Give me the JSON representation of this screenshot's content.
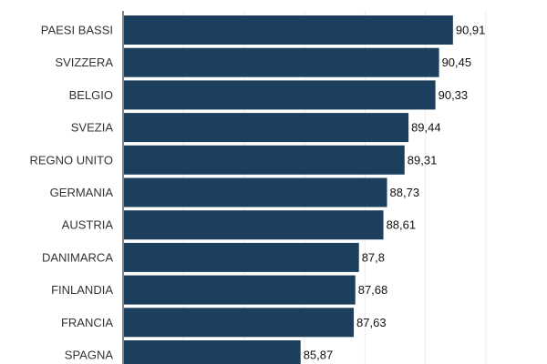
{
  "chart_data": {
    "type": "bar",
    "orientation": "horizontal",
    "categories": [
      "PAESI BASSI",
      "SVIZZERA",
      "BELGIO",
      "SVEZIA",
      "REGNO UNITO",
      "GERMANIA",
      "AUSTRIA",
      "DANIMARCA",
      "FINLANDIA",
      "FRANCIA",
      "SPAGNA"
    ],
    "values": [
      90.91,
      90.45,
      90.33,
      89.44,
      89.31,
      88.73,
      88.61,
      87.8,
      87.68,
      87.63,
      85.87
    ],
    "value_labels": [
      "90,91",
      "90,45",
      "90,33",
      "89,44",
      "89,31",
      "88,73",
      "88,61",
      "87,8",
      "87,68",
      "87,63",
      "85,87"
    ],
    "xlim": [
      80,
      92
    ],
    "grid": true,
    "grid_values": [
      82,
      84,
      86,
      88,
      90,
      92
    ],
    "bar_color": "#1c3f5e",
    "title": "",
    "xlabel": "",
    "ylabel": ""
  }
}
